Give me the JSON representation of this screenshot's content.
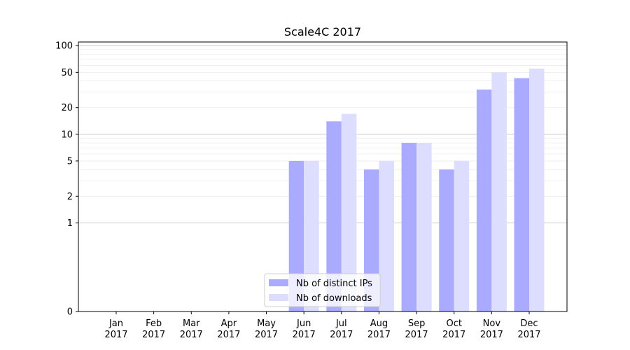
{
  "chart_data": {
    "type": "bar",
    "title": "Scale4C 2017",
    "xlabel": "",
    "ylabel": "",
    "yscale": "symlog",
    "ylim": [
      0,
      110
    ],
    "yticks": [
      0,
      1,
      2,
      5,
      10,
      20,
      50,
      100
    ],
    "grid": "horizontal",
    "legend_position": "bottom-center",
    "categories": [
      [
        "Jan",
        "2017"
      ],
      [
        "Feb",
        "2017"
      ],
      [
        "Mar",
        "2017"
      ],
      [
        "Apr",
        "2017"
      ],
      [
        "May",
        "2017"
      ],
      [
        "Jun",
        "2017"
      ],
      [
        "Jul",
        "2017"
      ],
      [
        "Aug",
        "2017"
      ],
      [
        "Sep",
        "2017"
      ],
      [
        "Oct",
        "2017"
      ],
      [
        "Nov",
        "2017"
      ],
      [
        "Dec",
        "2017"
      ]
    ],
    "series": [
      {
        "name": "Nb of distinct IPs",
        "color": "#aaaaff",
        "values": [
          0,
          0,
          0,
          0,
          0,
          5,
          14,
          4,
          8,
          4,
          32,
          43
        ]
      },
      {
        "name": "Nb of downloads",
        "color": "#ddddff",
        "values": [
          0,
          0,
          0,
          0,
          0,
          5,
          17,
          5,
          8,
          5,
          50,
          55
        ]
      }
    ]
  }
}
